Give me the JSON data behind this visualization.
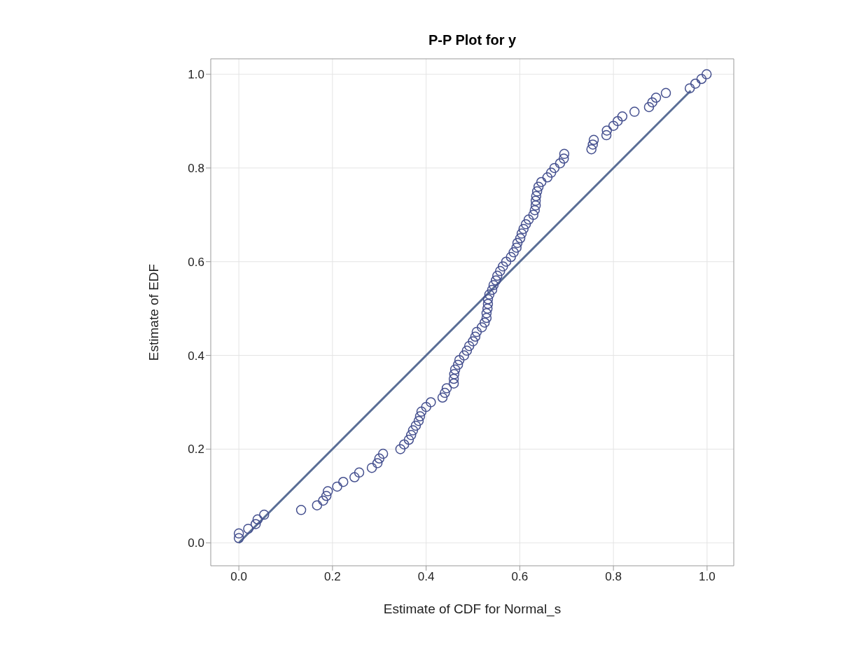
{
  "chart_data": {
    "type": "scatter",
    "title": "P-P Plot for y",
    "xlabel": "Estimate of CDF for Normal_s",
    "ylabel": "Estimate of EDF",
    "xlim": [
      -0.06,
      1.057
    ],
    "ylim": [
      -0.049,
      1.033
    ],
    "xticks": [
      {
        "value": 0,
        "label": "0.0"
      },
      0.2,
      0.4,
      0.6,
      0.8,
      {
        "value": 1,
        "label": "1.0"
      }
    ],
    "yticks": [
      {
        "value": 0,
        "label": "0.0"
      },
      0.2,
      0.4,
      0.6,
      0.8,
      {
        "value": 1,
        "label": "1.0"
      }
    ],
    "grid": true,
    "series": [
      {
        "marker": "circle",
        "color": "#45508f",
        "x": [
          0.0,
          0.0,
          0.02,
          0.036,
          0.04,
          0.054,
          0.133,
          0.167,
          0.18,
          0.187,
          0.19,
          0.21,
          0.223,
          0.247,
          0.257,
          0.284,
          0.296,
          0.3,
          0.308,
          0.345,
          0.353,
          0.363,
          0.368,
          0.372,
          0.378,
          0.384,
          0.387,
          0.39,
          0.4,
          0.41,
          0.435,
          0.44,
          0.444,
          0.459,
          0.459,
          0.46,
          0.462,
          0.468,
          0.471,
          0.481,
          0.487,
          0.492,
          0.5,
          0.505,
          0.508,
          0.519,
          0.525,
          0.529,
          0.529,
          0.531,
          0.532,
          0.532,
          0.535,
          0.541,
          0.544,
          0.549,
          0.552,
          0.558,
          0.564,
          0.571,
          0.581,
          0.587,
          0.593,
          0.595,
          0.601,
          0.604,
          0.608,
          0.613,
          0.619,
          0.629,
          0.632,
          0.634,
          0.634,
          0.635,
          0.637,
          0.64,
          0.646,
          0.659,
          0.667,
          0.674,
          0.686,
          0.694,
          0.695,
          0.753,
          0.756,
          0.758,
          0.785,
          0.786,
          0.8,
          0.809,
          0.819,
          0.845,
          0.876,
          0.883,
          0.891,
          0.912,
          0.963,
          0.975,
          0.988,
          0.999
        ],
        "values": [
          0.01,
          0.02,
          0.03,
          0.04,
          0.05,
          0.06,
          0.07,
          0.08,
          0.09,
          0.1,
          0.11,
          0.12,
          0.13,
          0.14,
          0.15,
          0.16,
          0.17,
          0.18,
          0.19,
          0.2,
          0.21,
          0.22,
          0.23,
          0.24,
          0.25,
          0.26,
          0.27,
          0.28,
          0.29,
          0.3,
          0.31,
          0.32,
          0.33,
          0.34,
          0.35,
          0.36,
          0.37,
          0.38,
          0.39,
          0.4,
          0.41,
          0.42,
          0.43,
          0.44,
          0.45,
          0.46,
          0.47,
          0.48,
          0.49,
          0.5,
          0.51,
          0.52,
          0.53,
          0.54,
          0.55,
          0.56,
          0.57,
          0.58,
          0.59,
          0.6,
          0.61,
          0.62,
          0.63,
          0.64,
          0.65,
          0.66,
          0.67,
          0.68,
          0.69,
          0.7,
          0.71,
          0.72,
          0.73,
          0.74,
          0.75,
          0.76,
          0.77,
          0.78,
          0.79,
          0.8,
          0.81,
          0.82,
          0.83,
          0.84,
          0.85,
          0.86,
          0.87,
          0.88,
          0.89,
          0.9,
          0.91,
          0.92,
          0.93,
          0.94,
          0.95,
          0.96,
          0.97,
          0.98,
          0.99,
          1.0
        ]
      },
      {
        "type": "line",
        "color": "#5a6e96",
        "x": [
          0.0,
          0.965
        ],
        "values": [
          0.0,
          0.965
        ]
      }
    ]
  }
}
